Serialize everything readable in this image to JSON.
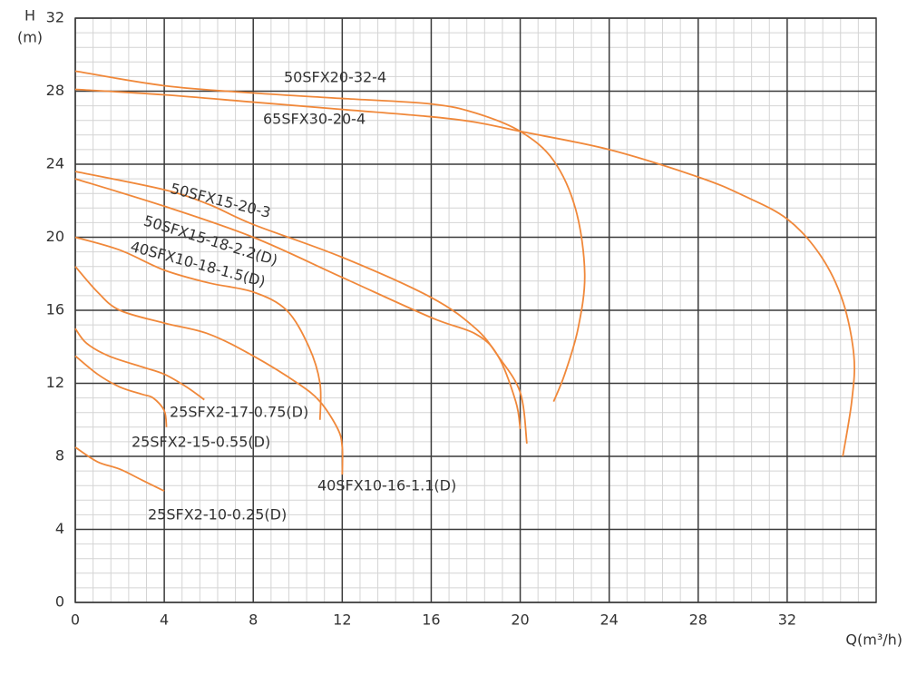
{
  "chart_data": {
    "type": "line",
    "ylabel_lines": [
      "H",
      "(m)"
    ],
    "xlabel": "Q(m³/h)",
    "xlim": [
      0,
      36
    ],
    "ylim": [
      0,
      32
    ],
    "xticks": [
      0,
      4,
      8,
      12,
      16,
      20,
      24,
      28,
      32
    ],
    "yticks": [
      0,
      4,
      8,
      12,
      16,
      20,
      24,
      28,
      32
    ],
    "grid": true,
    "minor_grid_step": 0.8,
    "color": "#f0883a",
    "series": [
      {
        "name": "50SFX20-32-4",
        "x": [
          0,
          4,
          8,
          12,
          16,
          18,
          20,
          21.5,
          22.5,
          22.9,
          22.6,
          22,
          21.5
        ],
        "values": [
          29.1,
          28.3,
          27.9,
          27.6,
          27.3,
          26.8,
          25.8,
          24.2,
          21.5,
          18,
          15,
          12.5,
          11
        ]
      },
      {
        "name": "65SFX30-20-4",
        "x": [
          0,
          4,
          8,
          12,
          16,
          18,
          20,
          24,
          28,
          30,
          32,
          33.5,
          34.5,
          35,
          34.9,
          34.5
        ],
        "values": [
          28.1,
          27.8,
          27.4,
          27,
          26.6,
          26.3,
          25.8,
          24.8,
          23.3,
          22.3,
          21,
          19,
          16.5,
          13.5,
          11,
          8
        ]
      },
      {
        "name": "50SFX15-20-3",
        "x": [
          0,
          4,
          6,
          8,
          12,
          16,
          18,
          19,
          20,
          20.3
        ],
        "values": [
          23.6,
          22.6,
          21.8,
          20.7,
          18.9,
          16.7,
          15,
          13.5,
          11.5,
          8.7
        ]
      },
      {
        "name": "50SFX15-18-2.2(D)",
        "x": [
          0,
          4,
          8,
          12,
          16,
          18,
          19,
          19.8,
          20
        ],
        "values": [
          23.2,
          21.7,
          20,
          17.8,
          15.6,
          14.7,
          13.5,
          11,
          9.5
        ]
      },
      {
        "name": "40SFX10-18-1.5(D)",
        "x": [
          0,
          2,
          4,
          6,
          8,
          9.5,
          10.5,
          11,
          11
        ],
        "values": [
          20,
          19.3,
          18.2,
          17.5,
          17,
          16,
          14,
          12,
          10
        ]
      },
      {
        "name": "40SFX10-16-1.1(D)",
        "x": [
          0,
          1,
          2,
          4,
          6,
          8,
          10,
          11,
          11.8,
          12,
          12
        ],
        "values": [
          18.4,
          17,
          16,
          15.3,
          14.7,
          13.5,
          12,
          11,
          9.5,
          8.5,
          7
        ]
      },
      {
        "name": "25SFX2-17-0.75(D)",
        "x": [
          0,
          0.5,
          1.5,
          3,
          4,
          5,
          5.8
        ],
        "values": [
          15,
          14.2,
          13.5,
          12.9,
          12.5,
          11.8,
          11.1
        ]
      },
      {
        "name": "25SFX2-15-0.55(D)",
        "x": [
          0,
          1,
          2,
          3,
          3.5,
          4,
          4.1
        ],
        "values": [
          13.5,
          12.5,
          11.8,
          11.4,
          11.2,
          10.5,
          9.6
        ]
      },
      {
        "name": "25SFX2-10-0.25(D)",
        "x": [
          0,
          1,
          2,
          3,
          4
        ],
        "values": [
          8.5,
          7.7,
          7.3,
          6.7,
          6.1
        ]
      }
    ]
  }
}
